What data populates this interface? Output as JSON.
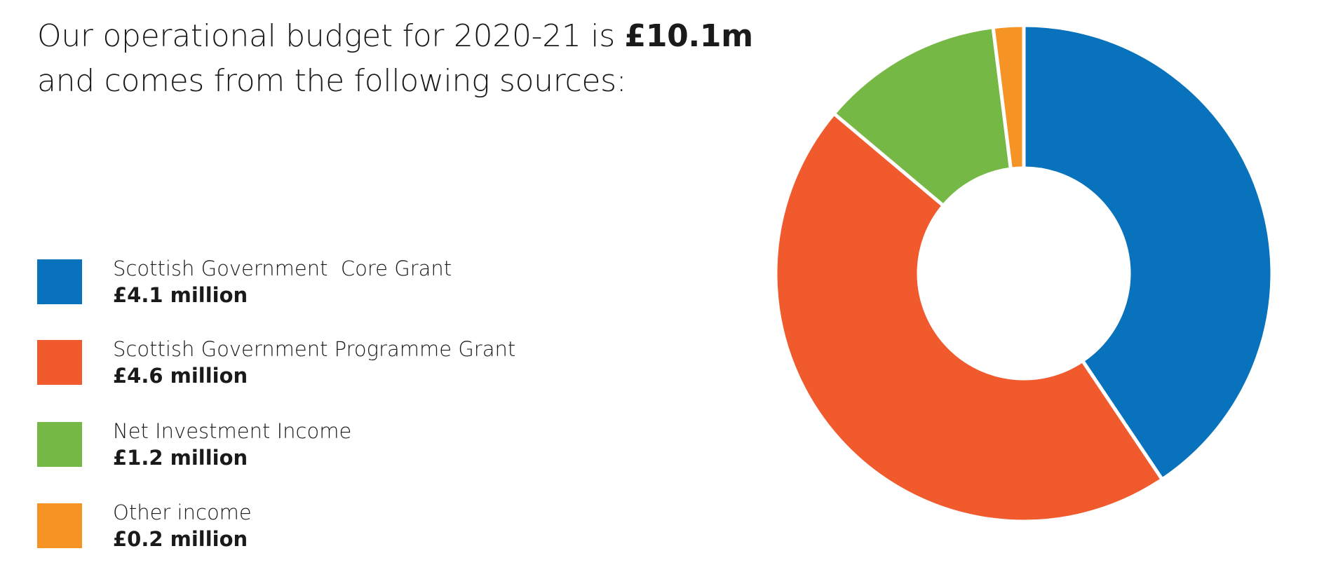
{
  "headline": {
    "line1_text": "Our operational budget for 2020-21 is ",
    "line1_bold": "£10.1m",
    "line2": "and comes from the following sources:"
  },
  "chart_data": {
    "type": "pie",
    "donut": true,
    "title": "",
    "total": "£10.1m",
    "unit": "£ million",
    "categories": [
      "Scottish Government  Core Grant",
      "Scottish Government Programme Grant",
      "Net Investment Income",
      "Other income"
    ],
    "values": [
      4.1,
      4.6,
      1.2,
      0.2
    ],
    "value_labels": [
      "£4.1 million",
      "£4.6 million",
      "£1.2 million",
      "£0.2 million"
    ],
    "colors": [
      "#0872bc",
      "#f05a2d",
      "#76b845",
      "#f59425"
    ],
    "legend_position": "left",
    "start_angle_deg": 0,
    "direction": "clockwise"
  }
}
